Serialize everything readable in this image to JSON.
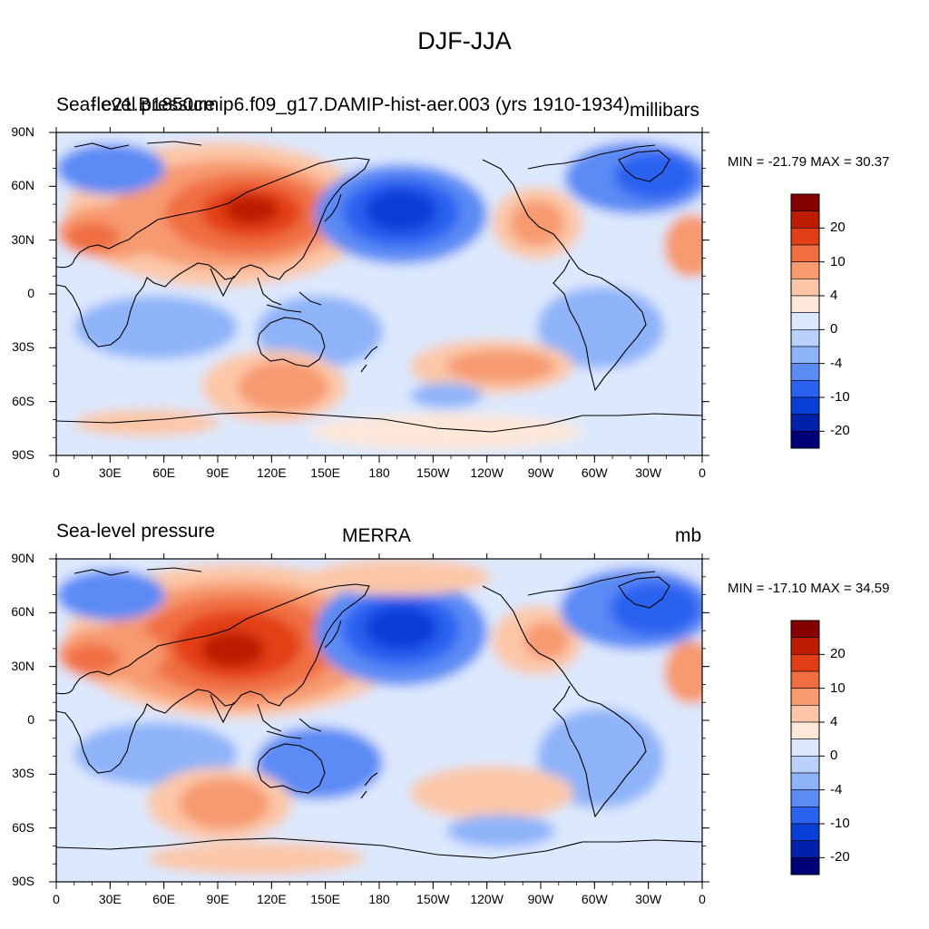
{
  "title": "DJF-JJA",
  "palette": [
    "#000077",
    "#0022aa",
    "#0a3ed8",
    "#2b62f0",
    "#5b8bf5",
    "#8eb3f9",
    "#b9d1fc",
    "#dce8fd",
    "#fde7d8",
    "#fbc7a8",
    "#f79a70",
    "#f06e42",
    "#e33f16",
    "#bc1c00",
    "#850000"
  ],
  "panels": [
    {
      "id": "top",
      "left_label": "Sea-level pressure",
      "center_label": "f.e21.B1850cmip6.f09_g17.DAMIP-hist-aer.003 (yrs 1910-1934)",
      "right_label": "millibars",
      "min_max": "MIN = -21.79 MAX =  30.37",
      "colorbar_labels": [
        "20",
        "10",
        "4",
        "0",
        "-4",
        "-10",
        "-20"
      ]
    },
    {
      "id": "bottom",
      "left_label": "Sea-level pressure",
      "center_label": "MERRA",
      "right_label": "mb",
      "min_max": "MIN = -17.10 MAX =  34.59",
      "colorbar_labels": [
        "20",
        "10",
        "4",
        "0",
        "-4",
        "-10",
        "-20"
      ]
    }
  ],
  "axes": {
    "lat_labels": [
      "90N",
      "60N",
      "30N",
      "0",
      "30S",
      "60S",
      "90S"
    ],
    "lon_labels": [
      "0",
      "30E",
      "60E",
      "90E",
      "120E",
      "150E",
      "180",
      "150W",
      "120W",
      "90W",
      "60W",
      "30W",
      "0"
    ]
  }
}
